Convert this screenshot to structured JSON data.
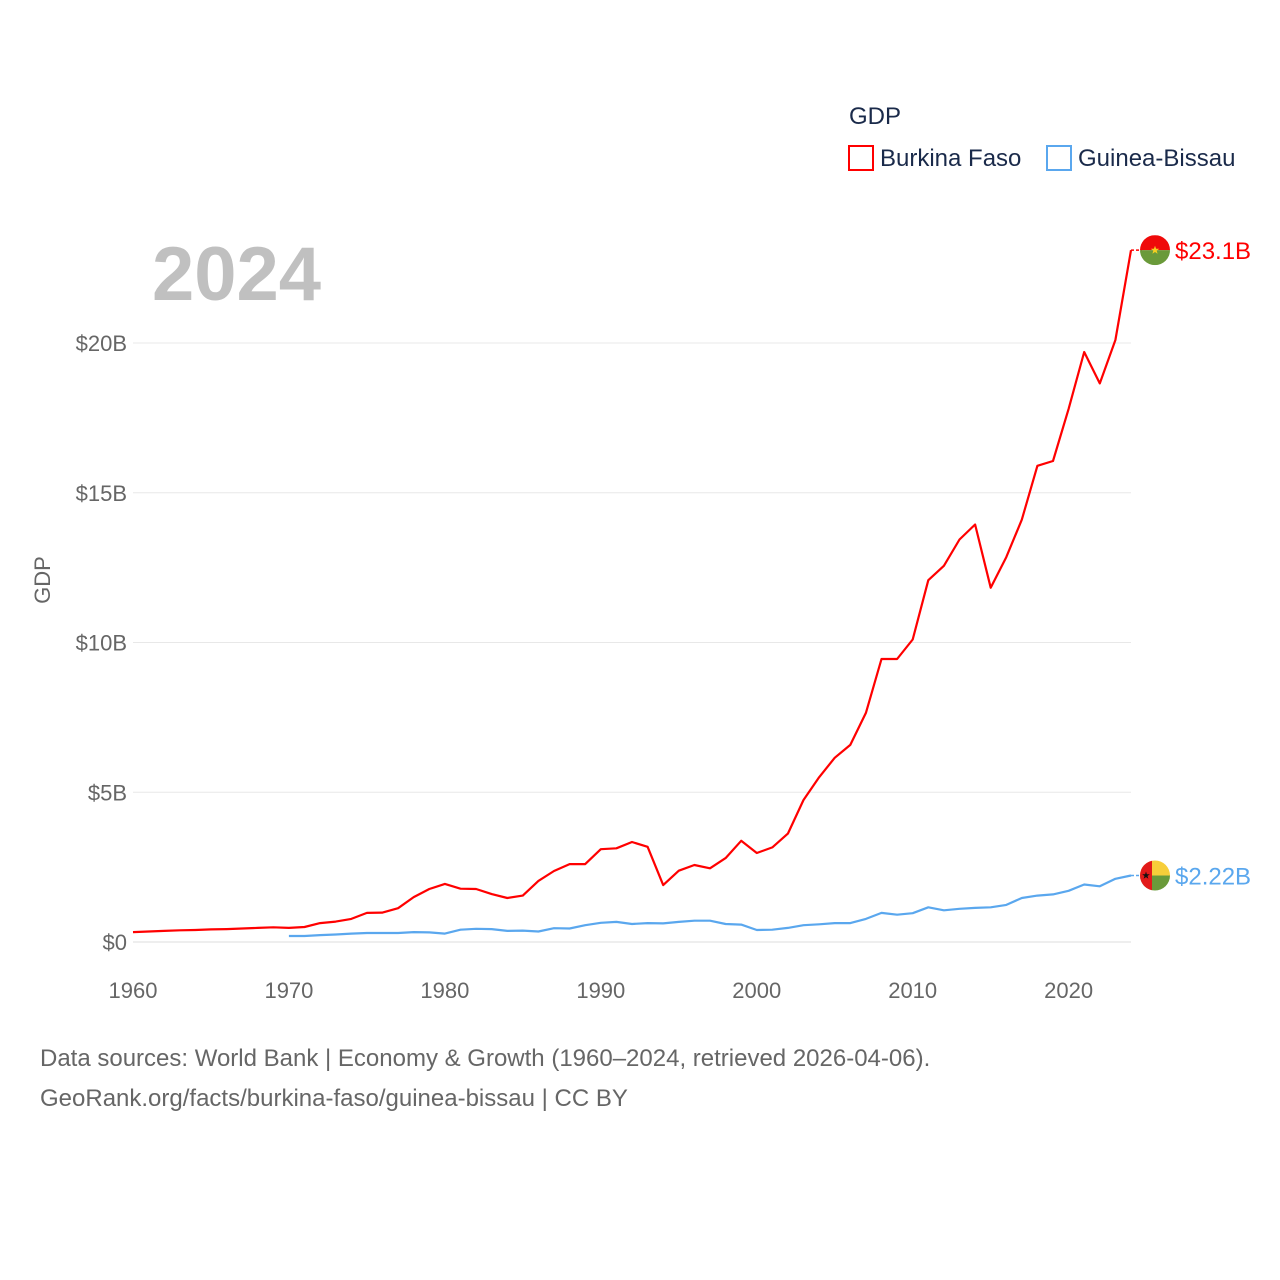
{
  "chart_data": {
    "type": "line",
    "title": "2024",
    "ylabel": "GDP",
    "xlabel": "",
    "legend_title": "GDP",
    "legend_position": "top-right",
    "xlim": [
      1960,
      2024
    ],
    "ylim": [
      0,
      23.1
    ],
    "x_ticks": [
      1960,
      1970,
      1980,
      1990,
      2000,
      2010,
      2020
    ],
    "y_ticks": [
      {
        "v": 0,
        "label": "$0"
      },
      {
        "v": 5,
        "label": "$5B"
      },
      {
        "v": 10,
        "label": "$10B"
      },
      {
        "v": 15,
        "label": "$15B"
      },
      {
        "v": 20,
        "label": "$20B"
      }
    ],
    "grid": true,
    "series": [
      {
        "name": "Burkina Faso",
        "color": "#ff0000",
        "end_label": "$23.1B",
        "flag": "burkina-faso",
        "start": 1960,
        "values": [
          0.33,
          0.35,
          0.37,
          0.39,
          0.4,
          0.42,
          0.43,
          0.45,
          0.47,
          0.49,
          0.47,
          0.5,
          0.63,
          0.68,
          0.77,
          0.97,
          0.98,
          1.13,
          1.5,
          1.77,
          1.94,
          1.78,
          1.77,
          1.6,
          1.47,
          1.55,
          2.04,
          2.37,
          2.6,
          2.6,
          3.1,
          3.13,
          3.34,
          3.18,
          1.9,
          2.38,
          2.57,
          2.46,
          2.8,
          3.38,
          2.97,
          3.16,
          3.62,
          4.74,
          5.5,
          6.15,
          6.58,
          7.65,
          9.45,
          9.45,
          10.1,
          12.08,
          12.56,
          13.44,
          13.94,
          11.83,
          12.85,
          14.1,
          15.9,
          16.06,
          17.8,
          19.7,
          18.65,
          20.1,
          23.1
        ]
      },
      {
        "name": "Guinea-Bissau",
        "color": "#5aa7ee",
        "end_label": "$2.22B",
        "flag": "guinea-bissau",
        "start": 1970,
        "values": [
          0.2,
          0.2,
          0.23,
          0.25,
          0.28,
          0.3,
          0.3,
          0.3,
          0.33,
          0.32,
          0.28,
          0.41,
          0.44,
          0.43,
          0.37,
          0.38,
          0.35,
          0.46,
          0.45,
          0.56,
          0.64,
          0.67,
          0.6,
          0.63,
          0.62,
          0.67,
          0.71,
          0.71,
          0.6,
          0.58,
          0.4,
          0.41,
          0.47,
          0.56,
          0.59,
          0.63,
          0.63,
          0.77,
          0.97,
          0.91,
          0.96,
          1.16,
          1.06,
          1.11,
          1.14,
          1.16,
          1.24,
          1.47,
          1.55,
          1.59,
          1.71,
          1.92,
          1.86,
          2.11,
          2.22
        ]
      }
    ]
  },
  "footer": {
    "line1": "Data sources: World Bank | Economy & Growth (1960–2024, retrieved 2026-04-06).",
    "line2": "GeoRank.org/facts/burkina-faso/guinea-bissau | CC BY"
  }
}
